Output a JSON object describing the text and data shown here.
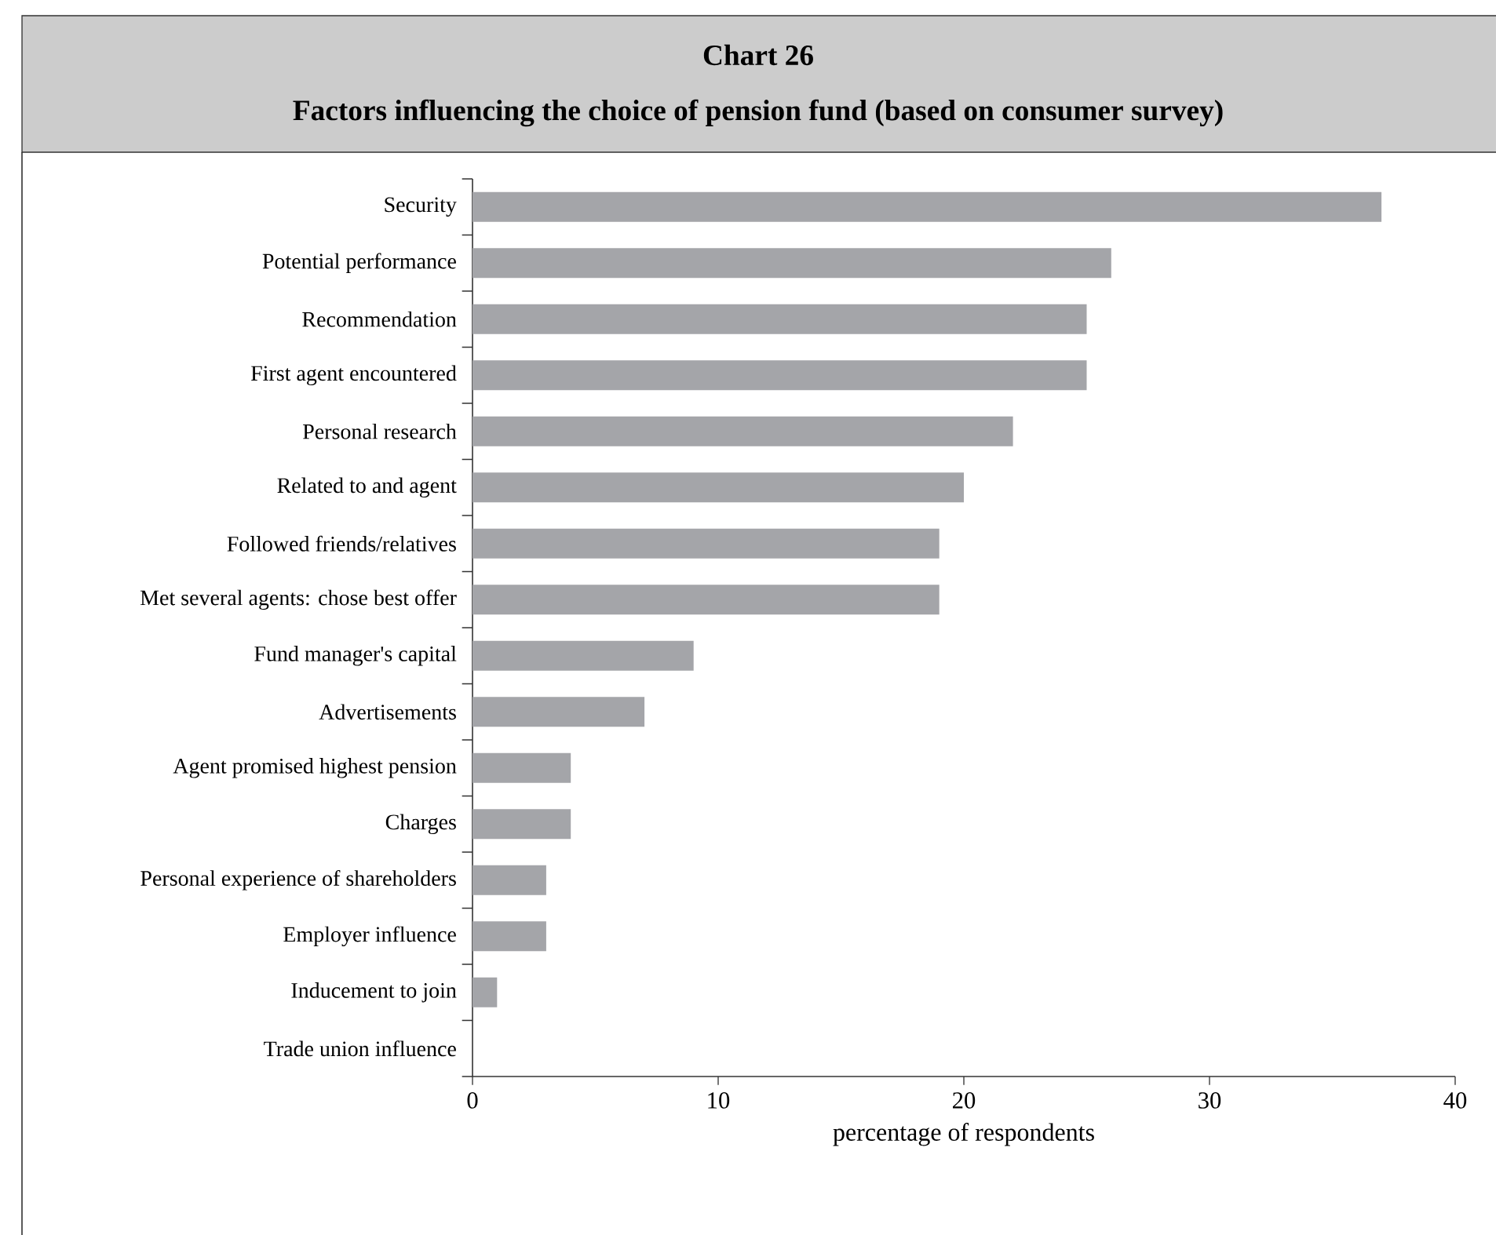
{
  "chart_data": {
    "type": "bar",
    "orientation": "horizontal",
    "title": "Chart 26",
    "subtitle": "Factors influencing the choice of pension fund (based on consumer survey)",
    "xlabel": "percentage of respondents",
    "categories": [
      "Security",
      "Potential performance",
      "Recommendation",
      "First agent encountered",
      "Personal research",
      "Related to and agent",
      "Followed friends/relatives",
      "Met several agents: chose best offer",
      "Fund manager's capital",
      "Advertisements",
      "Agent promised highest pension",
      "Charges",
      "Personal experience of shareholders",
      "Employer influence",
      "Inducement to join",
      "Trade union influence"
    ],
    "values": [
      37,
      26,
      25,
      25,
      22,
      20,
      19,
      19,
      9,
      7,
      4,
      4,
      3,
      3,
      1,
      0
    ],
    "color": "#a4a5a9",
    "xlim": [
      0,
      40
    ],
    "xticks": [
      0,
      10,
      20,
      30,
      40
    ]
  }
}
